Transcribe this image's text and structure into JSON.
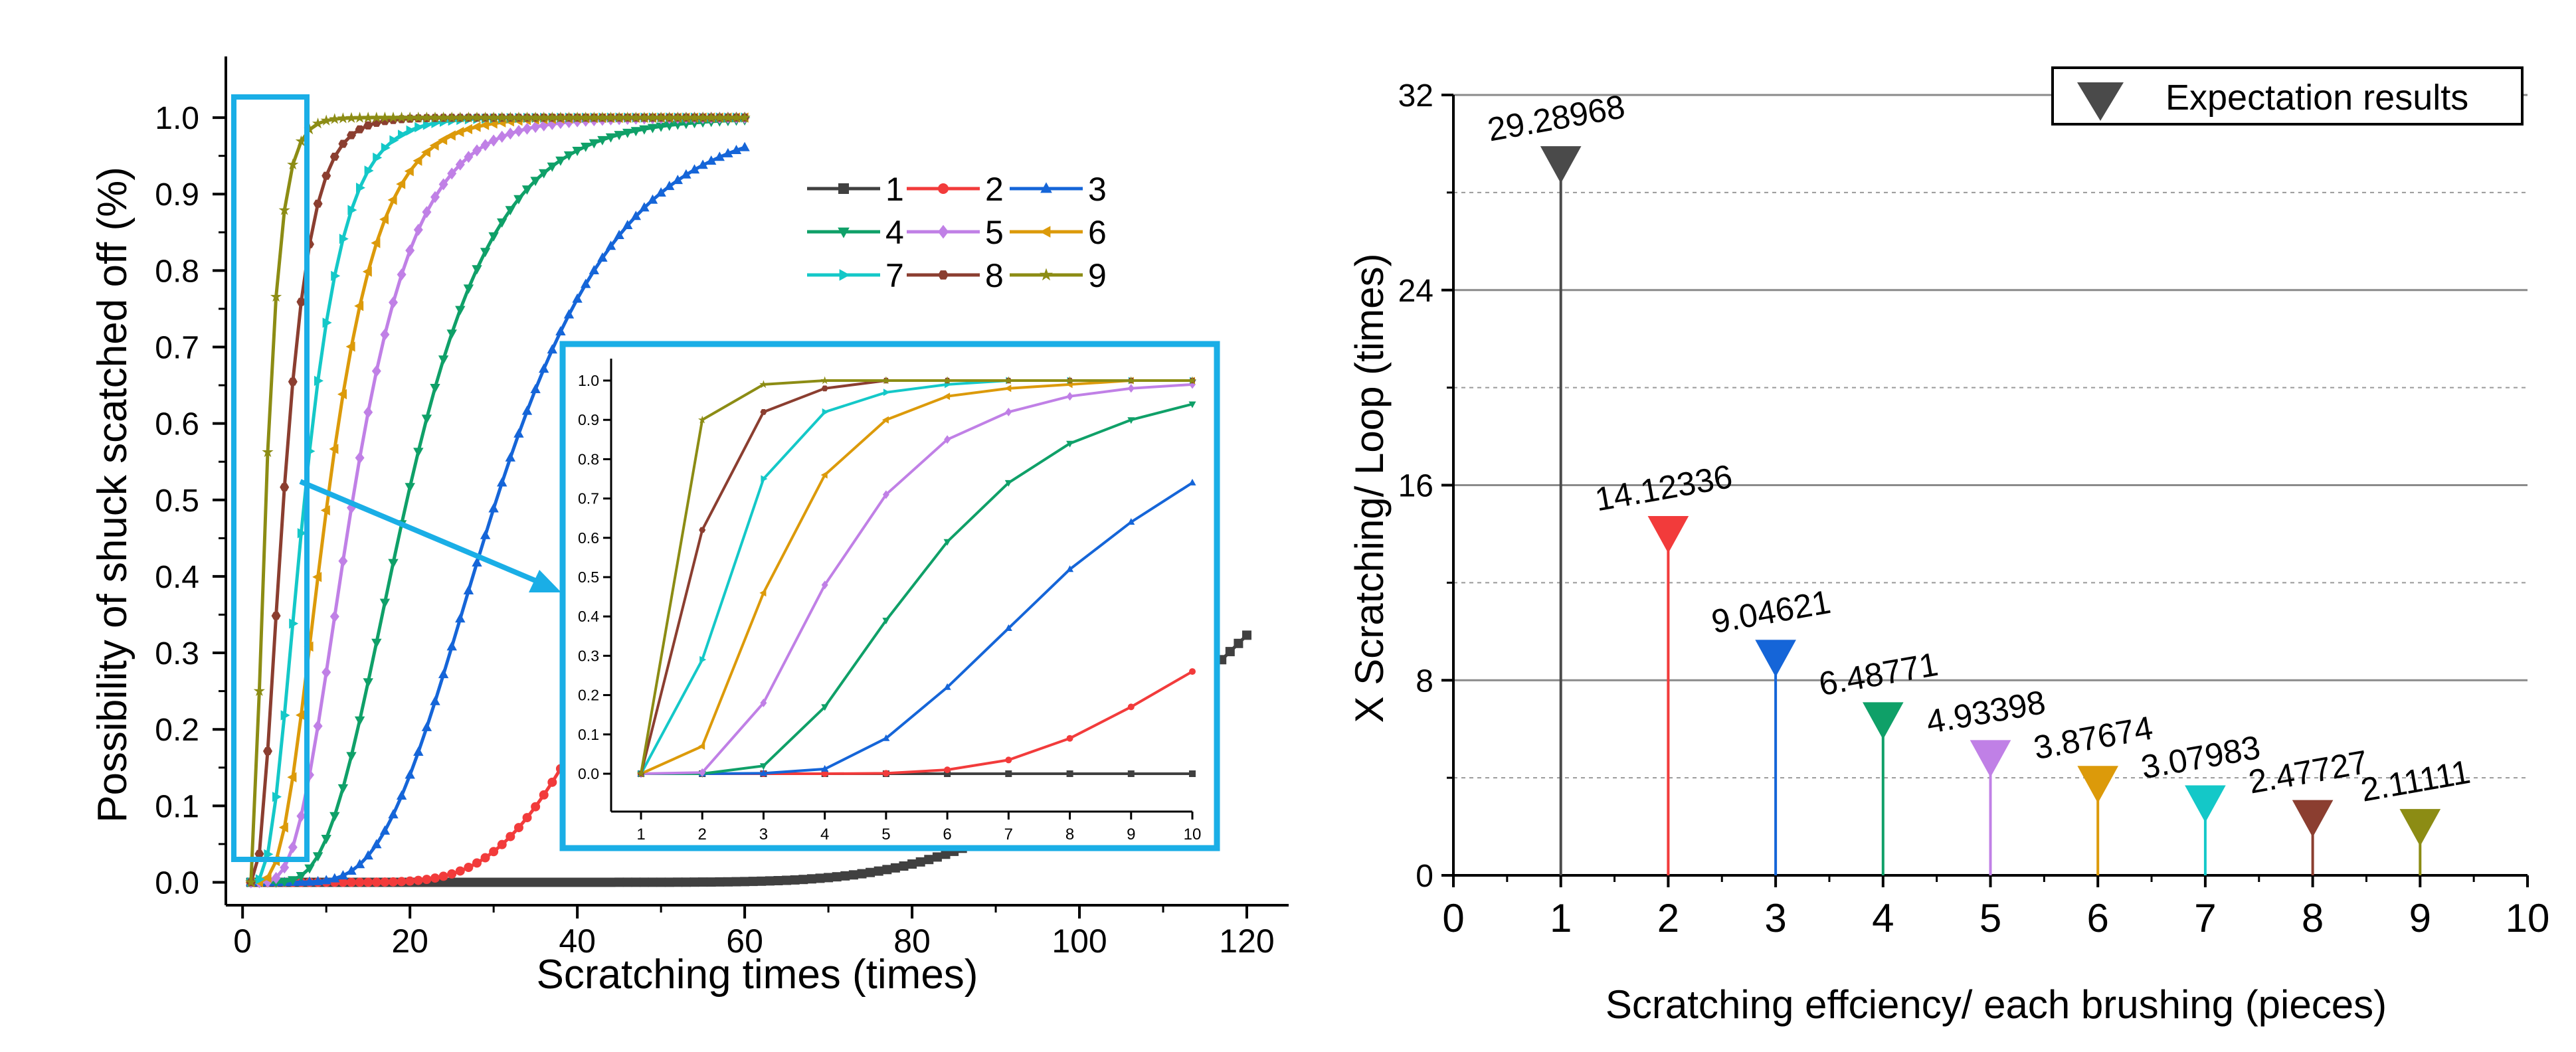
{
  "chart_data": [
    {
      "type": "line",
      "title": "",
      "xlabel": "Scratching times (times)",
      "ylabel": "Possibility of shuck scatched off (%)",
      "xlim": [
        -2,
        125
      ],
      "ylim": [
        -0.03,
        1.08
      ],
      "xticks": [
        0,
        20,
        40,
        60,
        80,
        100,
        120
      ],
      "yticks": [
        0.0,
        0.1,
        0.2,
        0.3,
        0.4,
        0.5,
        0.6,
        0.7,
        0.8,
        0.9,
        1.0
      ],
      "legend_position": "upper-right",
      "series": [
        {
          "name": "1",
          "color": "#404040",
          "marker": "square",
          "x_max": 120
        },
        {
          "name": "2",
          "color": "#f23b3b",
          "marker": "circle",
          "x_max": 60
        },
        {
          "name": "3",
          "color": "#1565d8",
          "marker": "triangle-up",
          "x_max": 60
        },
        {
          "name": "4",
          "color": "#0fa068",
          "marker": "triangle-down",
          "x_max": 60
        },
        {
          "name": "5",
          "color": "#c080e6",
          "marker": "diamond",
          "x_max": 60
        },
        {
          "name": "6",
          "color": "#dc9a0a",
          "marker": "triangle-left",
          "x_max": 60
        },
        {
          "name": "7",
          "color": "#14c8c8",
          "marker": "triangle-right",
          "x_max": 60
        },
        {
          "name": "8",
          "color": "#8b3e30",
          "marker": "hexagon",
          "x_max": 60
        },
        {
          "name": "9",
          "color": "#8c8c14",
          "marker": "star",
          "x_max": 60
        }
      ],
      "annotation": "highlighted region x 1–10 shown magnified in inset"
    },
    {
      "type": "line",
      "title": "",
      "note": "inset zoom of left chart",
      "xlim": [
        1,
        10
      ],
      "ylim": [
        -0.05,
        1.05
      ],
      "xticks": [
        1,
        2,
        3,
        4,
        5,
        6,
        7,
        8,
        9,
        10
      ],
      "yticks": [
        0.0,
        0.1,
        0.2,
        0.3,
        0.4,
        0.5,
        0.6,
        0.7,
        0.8,
        0.9,
        1.0
      ],
      "x": [
        1,
        2,
        3,
        4,
        5,
        6,
        7,
        8,
        9,
        10
      ],
      "series": [
        {
          "name": "1",
          "color": "#404040",
          "values": [
            0,
            0,
            0,
            0,
            0,
            0,
            0,
            0,
            0,
            0
          ]
        },
        {
          "name": "2",
          "color": "#f23b3b",
          "values": [
            0,
            0,
            0,
            0,
            0.001,
            0.01,
            0.035,
            0.09,
            0.17,
            0.26
          ]
        },
        {
          "name": "3",
          "color": "#1565d8",
          "values": [
            0,
            0,
            0.001,
            0.012,
            0.09,
            0.22,
            0.37,
            0.52,
            0.64,
            0.74
          ]
        },
        {
          "name": "4",
          "color": "#0fa068",
          "values": [
            0,
            0,
            0.02,
            0.17,
            0.39,
            0.59,
            0.74,
            0.84,
            0.9,
            0.94
          ]
        },
        {
          "name": "5",
          "color": "#c080e6",
          "values": [
            0,
            0.003,
            0.18,
            0.48,
            0.71,
            0.85,
            0.92,
            0.96,
            0.98,
            0.99
          ]
        },
        {
          "name": "6",
          "color": "#dc9a0a",
          "values": [
            0,
            0.07,
            0.46,
            0.76,
            0.9,
            0.96,
            0.98,
            0.99,
            1.0,
            1.0
          ]
        },
        {
          "name": "7",
          "color": "#14c8c8",
          "values": [
            0,
            0.29,
            0.75,
            0.92,
            0.97,
            0.99,
            1.0,
            1.0,
            1.0,
            1.0
          ]
        },
        {
          "name": "8",
          "color": "#8b3e30",
          "values": [
            0,
            0.62,
            0.92,
            0.98,
            1.0,
            1.0,
            1.0,
            1.0,
            1.0,
            1.0
          ]
        },
        {
          "name": "9",
          "color": "#8c8c14",
          "values": [
            0,
            0.9,
            0.99,
            1.0,
            1.0,
            1.0,
            1.0,
            1.0,
            1.0,
            1.0
          ]
        }
      ]
    },
    {
      "type": "stem",
      "title": "",
      "xlabel": "Scratching effciency/ each brushing (pieces)",
      "ylabel": "X Scratching/ Loop (times)",
      "xlim": [
        0,
        10
      ],
      "ylim": [
        0,
        32
      ],
      "xticks": [
        0,
        1,
        2,
        3,
        4,
        5,
        6,
        7,
        8,
        9,
        10
      ],
      "yticks": [
        0,
        8,
        16,
        24,
        32
      ],
      "legend": "Expectation results",
      "legend_position": "top-right",
      "x": [
        1,
        2,
        3,
        4,
        5,
        6,
        7,
        8,
        9
      ],
      "values": [
        29.28968,
        14.12336,
        9.04621,
        6.48771,
        4.93398,
        3.87674,
        3.07983,
        2.47727,
        2.11111
      ],
      "labels": [
        "29.28968",
        "14.12336",
        "9.04621",
        "6.48771",
        "4.93398",
        "3.87674",
        "3.07983",
        "2.47727",
        "2.11111"
      ],
      "colors": [
        "#4a4a4a",
        "#f23b3b",
        "#1565d8",
        "#0fa068",
        "#c080e6",
        "#dc9a0a",
        "#14c8c8",
        "#8b3e30",
        "#8c8c14"
      ]
    }
  ]
}
